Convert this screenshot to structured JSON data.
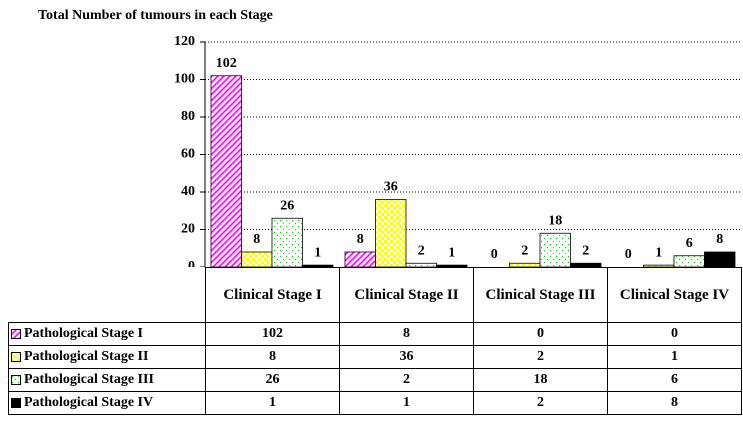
{
  "chart_data": {
    "type": "bar",
    "title": "Total Number of  tumours in each Stage",
    "categories": [
      "Clinical Stage I",
      "Clinical Stage II",
      "Clinical Stage III",
      "Clinical Stage IV"
    ],
    "series": [
      {
        "name": "Pathological Stage I",
        "color": "#ff00ff",
        "values": [
          102,
          8,
          0,
          0
        ]
      },
      {
        "name": "Pathological Stage II",
        "color": "#ffff00",
        "values": [
          8,
          36,
          2,
          1
        ]
      },
      {
        "name": "Pathological Stage III",
        "color": "#00cc00",
        "values": [
          26,
          2,
          18,
          6
        ]
      },
      {
        "name": "Pathological Stage IV",
        "color": "#000000",
        "values": [
          1,
          1,
          2,
          8
        ]
      }
    ],
    "ylim": [
      0,
      120
    ],
    "yticks": [
      0,
      20,
      40,
      60,
      80,
      100,
      120
    ],
    "grid": true
  }
}
